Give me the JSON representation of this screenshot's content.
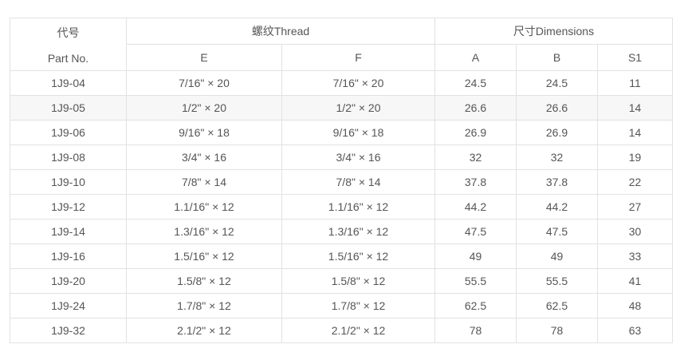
{
  "table": {
    "header": {
      "part_no_zh": "代号",
      "part_no_en": "Part No.",
      "thread_group": "螺纹Thread",
      "dimensions_group": "尺寸Dimensions",
      "sub_columns": [
        "E",
        "F",
        "A",
        "B",
        "S1"
      ]
    },
    "rows": [
      {
        "part_no": "1J9-04",
        "e": "7/16\" × 20",
        "f": "7/16\" × 20",
        "a": "24.5",
        "b": "24.5",
        "s1": "11"
      },
      {
        "part_no": "1J9-05",
        "e": "1/2\" × 20",
        "f": "1/2\" × 20",
        "a": "26.6",
        "b": "26.6",
        "s1": "14"
      },
      {
        "part_no": "1J9-06",
        "e": "9/16\" × 18",
        "f": "9/16\" × 18",
        "a": "26.9",
        "b": "26.9",
        "s1": "14"
      },
      {
        "part_no": "1J9-08",
        "e": "3/4\" × 16",
        "f": "3/4\" × 16",
        "a": "32",
        "b": "32",
        "s1": "19"
      },
      {
        "part_no": "1J9-10",
        "e": "7/8\" × 14",
        "f": "7/8\" × 14",
        "a": "37.8",
        "b": "37.8",
        "s1": "22"
      },
      {
        "part_no": "1J9-12",
        "e": "1.1/16\" × 12",
        "f": "1.1/16\" × 12",
        "a": "44.2",
        "b": "44.2",
        "s1": "27"
      },
      {
        "part_no": "1J9-14",
        "e": "1.3/16\" × 12",
        "f": "1.3/16\" × 12",
        "a": "47.5",
        "b": "47.5",
        "s1": "30"
      },
      {
        "part_no": "1J9-16",
        "e": "1.5/16\" × 12",
        "f": "1.5/16\" × 12",
        "a": "49",
        "b": "49",
        "s1": "33"
      },
      {
        "part_no": "1J9-20",
        "e": "1.5/8\" × 12",
        "f": "1.5/8\" × 12",
        "a": "55.5",
        "b": "55.5",
        "s1": "41"
      },
      {
        "part_no": "1J9-24",
        "e": "1.7/8\" × 12",
        "f": "1.7/8\" × 12",
        "a": "62.5",
        "b": "62.5",
        "s1": "48"
      },
      {
        "part_no": "1J9-32",
        "e": "2.1/2\" × 12",
        "f": "2.1/2\" × 12",
        "a": "78",
        "b": "78",
        "s1": "63"
      }
    ],
    "highlighted_part_no": "1J9-05"
  },
  "colors": {
    "border": "#e2e2e2",
    "text": "#555555",
    "row_highlight_bg": "#f7f7f7",
    "background": "#ffffff"
  }
}
